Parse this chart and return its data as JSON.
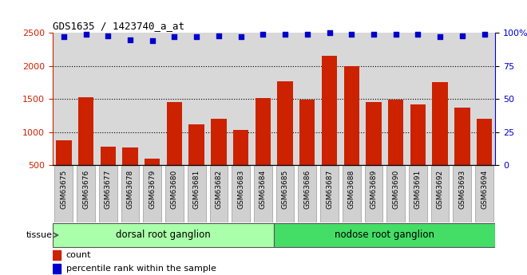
{
  "title": "GDS1635 / 1423740_a_at",
  "samples": [
    "GSM63675",
    "GSM63676",
    "GSM63677",
    "GSM63678",
    "GSM63679",
    "GSM63680",
    "GSM63681",
    "GSM63682",
    "GSM63683",
    "GSM63684",
    "GSM63685",
    "GSM63686",
    "GSM63687",
    "GSM63688",
    "GSM63689",
    "GSM63690",
    "GSM63691",
    "GSM63692",
    "GSM63693",
    "GSM63694"
  ],
  "counts": [
    870,
    1530,
    780,
    760,
    600,
    1460,
    1115,
    1200,
    1030,
    1510,
    1770,
    1490,
    2160,
    2000,
    1450,
    1490,
    1420,
    1760,
    1370,
    1200
  ],
  "percentile": [
    97,
    99,
    98,
    95,
    94,
    97,
    97,
    98,
    97,
    99,
    99,
    99,
    100,
    99,
    99,
    99,
    99,
    97,
    98,
    99
  ],
  "ylim_left": [
    500,
    2500
  ],
  "ylim_right": [
    0,
    100
  ],
  "yticks_left": [
    500,
    1000,
    1500,
    2000,
    2500
  ],
  "yticks_right": [
    0,
    25,
    50,
    75,
    100
  ],
  "groups": [
    {
      "label": "dorsal root ganglion",
      "start": 0,
      "end": 9,
      "color": "#aaffaa"
    },
    {
      "label": "nodose root ganglion",
      "start": 10,
      "end": 19,
      "color": "#44dd66"
    }
  ],
  "bar_color": "#cc2200",
  "dot_color": "#0000cc",
  "bg_color": "#d8d8d8",
  "tick_bg_color": "#d0d0d0",
  "tissue_label": "tissue",
  "legend_count": "count",
  "legend_percentile": "percentile rank within the sample"
}
